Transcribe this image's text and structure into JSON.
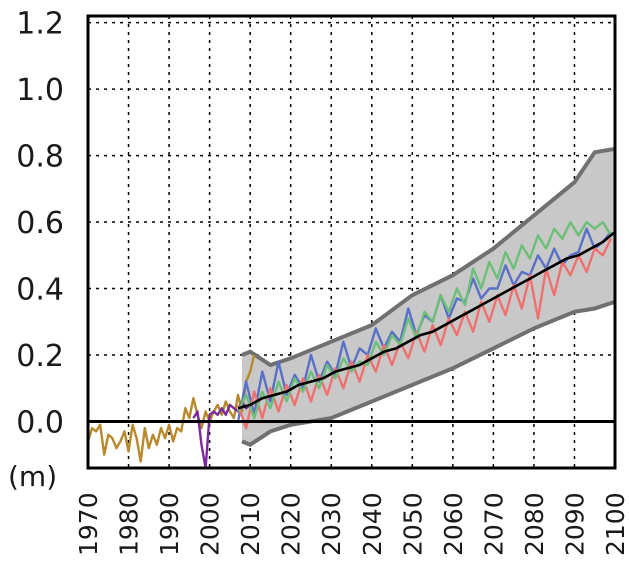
{
  "chart_data": {
    "type": "line",
    "unit_label": "(m)",
    "xlim": [
      1970,
      2100
    ],
    "ylim": [
      -0.14,
      1.22
    ],
    "grid": true,
    "x_ticks": [
      1970,
      1980,
      1990,
      2000,
      2010,
      2020,
      2030,
      2040,
      2050,
      2060,
      2070,
      2080,
      2090,
      2100
    ],
    "x_tick_labels": [
      "1970",
      "1980",
      "1990",
      "2000",
      "2010",
      "2020",
      "2030",
      "2040",
      "2050",
      "2060",
      "2070",
      "2080",
      "2090",
      "2100"
    ],
    "y_ticks": [
      0.0,
      0.2,
      0.4,
      0.6,
      0.8,
      1.0,
      1.2
    ],
    "y_tick_labels": [
      "0.0",
      "0.2",
      "0.4",
      "0.6",
      "0.8",
      "1.0",
      "1.2"
    ],
    "colors": {
      "mean": "#000000",
      "zero_line": "#000000",
      "band_fill": "#c8c8c8",
      "band_edge": "#707070",
      "grid": "#000000",
      "observed_a": "#b8892c",
      "observed_b": "#7a2a9c",
      "model_blue": "#5a6fc8",
      "model_red": "#f07070",
      "model_green": "#6cbf78"
    },
    "band": {
      "x": [
        2008,
        2010,
        2015,
        2020,
        2030,
        2040,
        2050,
        2060,
        2070,
        2080,
        2090,
        2095,
        2100
      ],
      "upper": [
        0.2,
        0.21,
        0.17,
        0.19,
        0.24,
        0.29,
        0.38,
        0.44,
        0.52,
        0.62,
        0.72,
        0.81,
        0.82
      ],
      "lower": [
        -0.06,
        -0.07,
        -0.03,
        -0.01,
        0.01,
        0.06,
        0.11,
        0.16,
        0.22,
        0.28,
        0.33,
        0.34,
        0.36
      ]
    },
    "series": [
      {
        "color_key": "observed_a",
        "x": [
          1970,
          1971,
          1972,
          1973,
          1974,
          1975,
          1976,
          1977,
          1978,
          1979,
          1980,
          1981,
          1982,
          1983,
          1984,
          1985,
          1986,
          1987,
          1988,
          1989,
          1990,
          1991,
          1992,
          1993,
          1994,
          1995,
          1996,
          1997,
          1998,
          1999,
          2000,
          2001,
          2002,
          2003,
          2004,
          2005,
          2006,
          2007,
          2008,
          2009,
          2010,
          2011
        ],
        "y": [
          -0.06,
          -0.02,
          -0.03,
          -0.01,
          -0.1,
          -0.04,
          -0.05,
          -0.08,
          -0.06,
          -0.03,
          -0.09,
          -0.01,
          -0.05,
          -0.12,
          -0.02,
          -0.08,
          -0.04,
          -0.07,
          -0.02,
          -0.05,
          -0.01,
          -0.06,
          -0.02,
          -0.03,
          0.04,
          0.01,
          0.07,
          0.02,
          -0.02,
          0.03,
          0.0,
          0.03,
          0.05,
          0.02,
          0.06,
          0.03,
          0.01,
          0.08,
          0.03,
          0.12,
          0.15,
          0.2
        ]
      },
      {
        "color_key": "observed_b",
        "x": [
          1996,
          1997,
          1998,
          1999,
          2000,
          2001,
          2002,
          2003,
          2004,
          2005,
          2006,
          2007,
          2008,
          2009,
          2010
        ],
        "y": [
          0.01,
          0.03,
          -0.07,
          -0.14,
          0.02,
          0.03,
          0.02,
          0.04,
          0.02,
          0.05,
          0.04,
          0.03,
          0.06,
          0.04,
          0.05
        ]
      },
      {
        "color_key": "model_blue",
        "x": [
          2007,
          2009,
          2011,
          2013,
          2015,
          2017,
          2019,
          2021,
          2023,
          2025,
          2027,
          2029,
          2031,
          2033,
          2035,
          2037,
          2039,
          2041,
          2043,
          2045,
          2047,
          2049,
          2051,
          2053,
          2055,
          2057,
          2059,
          2061,
          2063,
          2065,
          2067,
          2069,
          2071,
          2073,
          2075,
          2077,
          2079,
          2081,
          2083,
          2085,
          2087,
          2089,
          2091,
          2093,
          2095,
          2097,
          2099
        ],
        "y": [
          0.0,
          0.12,
          0.02,
          0.15,
          0.06,
          0.18,
          0.08,
          0.14,
          0.1,
          0.2,
          0.12,
          0.18,
          0.14,
          0.24,
          0.16,
          0.22,
          0.2,
          0.28,
          0.22,
          0.27,
          0.24,
          0.34,
          0.26,
          0.32,
          0.3,
          0.38,
          0.31,
          0.37,
          0.36,
          0.43,
          0.37,
          0.4,
          0.4,
          0.47,
          0.41,
          0.45,
          0.44,
          0.5,
          0.46,
          0.52,
          0.47,
          0.5,
          0.51,
          0.58,
          0.52,
          0.54,
          0.57
        ]
      },
      {
        "color_key": "model_red",
        "x": [
          2007,
          2009,
          2011,
          2013,
          2015,
          2017,
          2019,
          2021,
          2023,
          2025,
          2027,
          2029,
          2031,
          2033,
          2035,
          2037,
          2039,
          2041,
          2043,
          2045,
          2047,
          2049,
          2051,
          2053,
          2055,
          2057,
          2059,
          2061,
          2063,
          2065,
          2067,
          2069,
          2071,
          2073,
          2075,
          2077,
          2079,
          2081,
          2083,
          2085,
          2087,
          2089,
          2091,
          2093,
          2095,
          2097,
          2099
        ],
        "y": [
          0.05,
          -0.02,
          0.09,
          0.01,
          0.1,
          0.03,
          0.11,
          0.05,
          0.13,
          0.06,
          0.14,
          0.08,
          0.16,
          0.1,
          0.18,
          0.12,
          0.2,
          0.15,
          0.23,
          0.17,
          0.24,
          0.19,
          0.27,
          0.21,
          0.29,
          0.23,
          0.31,
          0.26,
          0.33,
          0.27,
          0.36,
          0.3,
          0.38,
          0.32,
          0.41,
          0.34,
          0.44,
          0.31,
          0.46,
          0.38,
          0.48,
          0.44,
          0.5,
          0.45,
          0.52,
          0.5,
          0.55
        ]
      },
      {
        "color_key": "model_green",
        "x": [
          2007,
          2009,
          2011,
          2013,
          2015,
          2017,
          2019,
          2021,
          2023,
          2025,
          2027,
          2029,
          2031,
          2033,
          2035,
          2037,
          2039,
          2041,
          2043,
          2045,
          2047,
          2049,
          2051,
          2053,
          2055,
          2057,
          2059,
          2061,
          2063,
          2065,
          2067,
          2069,
          2071,
          2073,
          2075,
          2077,
          2079,
          2081,
          2083,
          2085,
          2087,
          2089,
          2091,
          2093,
          2095,
          2097,
          2099
        ],
        "y": [
          0.03,
          0.08,
          0.01,
          0.09,
          0.04,
          0.12,
          0.06,
          0.13,
          0.09,
          0.15,
          0.1,
          0.17,
          0.13,
          0.19,
          0.15,
          0.18,
          0.17,
          0.24,
          0.2,
          0.26,
          0.23,
          0.31,
          0.25,
          0.33,
          0.3,
          0.38,
          0.33,
          0.4,
          0.35,
          0.46,
          0.4,
          0.48,
          0.43,
          0.51,
          0.46,
          0.53,
          0.49,
          0.56,
          0.52,
          0.58,
          0.55,
          0.6,
          0.56,
          0.6,
          0.58,
          0.6,
          0.56
        ]
      },
      {
        "color_key": "mean",
        "x": [
          2007,
          2010,
          2013,
          2016,
          2019,
          2022,
          2025,
          2028,
          2031,
          2034,
          2037,
          2040,
          2043,
          2046,
          2049,
          2052,
          2055,
          2058,
          2061,
          2064,
          2067,
          2070,
          2073,
          2076,
          2079,
          2082,
          2085,
          2088,
          2091,
          2094,
          2097,
          2100
        ],
        "y": [
          0.04,
          0.05,
          0.07,
          0.08,
          0.09,
          0.11,
          0.12,
          0.13,
          0.15,
          0.16,
          0.17,
          0.19,
          0.21,
          0.22,
          0.24,
          0.26,
          0.27,
          0.29,
          0.31,
          0.33,
          0.35,
          0.37,
          0.39,
          0.41,
          0.43,
          0.45,
          0.47,
          0.49,
          0.5,
          0.52,
          0.54,
          0.57
        ]
      }
    ]
  }
}
